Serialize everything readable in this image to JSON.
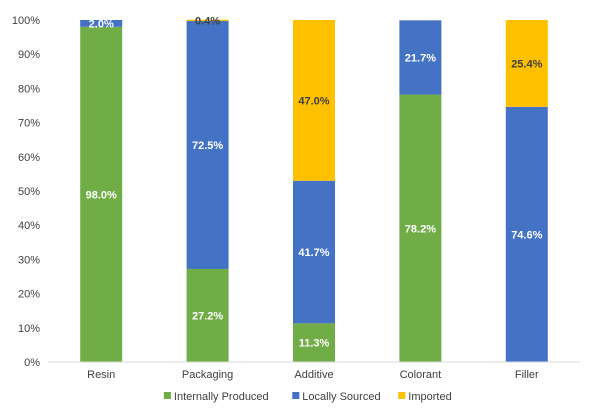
{
  "chart_data": {
    "type": "bar",
    "stacked": true,
    "percent_stacked": true,
    "categories": [
      "Resin",
      "Packaging",
      "Additive",
      "Colorant",
      "Filler"
    ],
    "series": [
      {
        "name": "Internally Produced",
        "color": "#70ad47",
        "values": [
          98.0,
          27.2,
          11.3,
          78.2,
          0
        ],
        "labels": [
          "98.0%",
          "27.2%",
          "11.3%",
          "78.2%",
          ""
        ]
      },
      {
        "name": "Locally Sourced",
        "color": "#4472c4",
        "values": [
          2.0,
          72.5,
          41.7,
          21.7,
          74.6
        ],
        "labels": [
          "2.0%",
          "72.5%",
          "41.7%",
          "21.7%",
          "74.6%"
        ]
      },
      {
        "name": "Imported",
        "color": "#ffc000",
        "values": [
          0,
          0.4,
          47.0,
          0,
          25.4
        ],
        "labels": [
          "",
          "0.4%",
          "47.0%",
          "",
          "25.4%"
        ]
      }
    ],
    "y_ticks": [
      "0%",
      "10%",
      "20%",
      "30%",
      "40%",
      "50%",
      "60%",
      "70%",
      "80%",
      "90%",
      "100%"
    ],
    "ylim": [
      0,
      100
    ],
    "grid": false,
    "legend_position": "bottom",
    "title": "",
    "xlabel": "",
    "ylabel": ""
  }
}
